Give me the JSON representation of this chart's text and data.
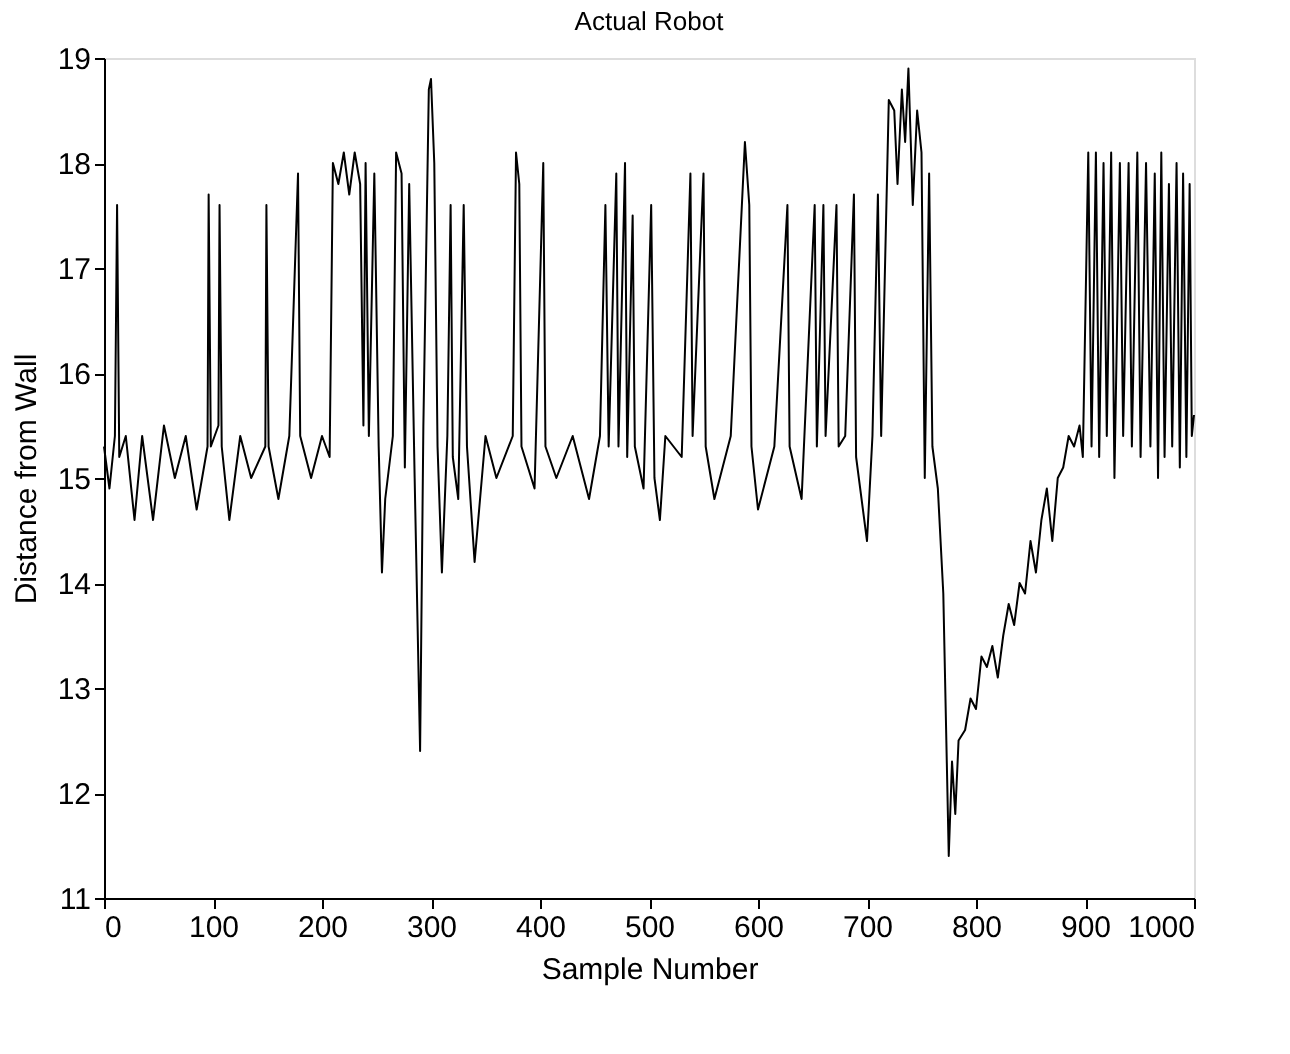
{
  "chart_data": {
    "type": "line",
    "title": "Actual Robot",
    "xlabel": "Sample Number",
    "ylabel": "Distance from Wall",
    "xlim": [
      0,
      1000
    ],
    "xticks": [
      0,
      100,
      200,
      300,
      400,
      500,
      600,
      700,
      800,
      900,
      1000
    ],
    "ylim": [
      11,
      19
    ],
    "yticks": [
      11,
      12,
      13,
      14,
      15,
      16,
      17,
      18,
      19
    ],
    "grid": false,
    "legend": false,
    "marker": "none",
    "line_style": "solid",
    "series": [
      {
        "color": "#000000",
        "x": [
          0,
          5,
          10,
          12,
          14,
          20,
          28,
          35,
          45,
          55,
          65,
          75,
          85,
          95,
          96,
          98,
          105,
          106,
          108,
          115,
          125,
          135,
          148,
          149,
          151,
          160,
          170,
          178,
          180,
          190,
          200,
          207,
          210,
          215,
          220,
          225,
          230,
          235,
          238,
          240,
          243,
          248,
          252,
          255,
          258,
          265,
          268,
          273,
          276,
          280,
          285,
          290,
          293,
          298,
          300,
          303,
          306,
          310,
          315,
          318,
          320,
          325,
          330,
          333,
          340,
          350,
          360,
          375,
          378,
          381,
          383,
          395,
          403,
          405,
          415,
          430,
          445,
          455,
          460,
          463,
          470,
          472,
          478,
          480,
          485,
          487,
          495,
          502,
          505,
          510,
          515,
          530,
          538,
          540,
          550,
          552,
          560,
          575,
          588,
          592,
          594,
          600,
          615,
          627,
          629,
          640,
          652,
          654,
          660,
          662,
          672,
          674,
          680,
          688,
          690,
          700,
          705,
          710,
          713,
          720,
          725,
          728,
          732,
          735,
          738,
          742,
          746,
          750,
          753,
          757,
          760,
          765,
          770,
          775,
          778,
          781,
          784,
          790,
          795,
          800,
          805,
          810,
          815,
          820,
          825,
          830,
          835,
          840,
          845,
          850,
          855,
          860,
          865,
          870,
          875,
          880,
          885,
          890,
          895,
          898,
          903,
          906,
          910,
          913,
          917,
          920,
          924,
          927,
          932,
          935,
          940,
          943,
          948,
          951,
          956,
          960,
          964,
          967,
          970,
          973,
          977,
          980,
          984,
          987,
          990,
          993,
          996,
          998,
          1000
        ],
        "values": [
          15.3,
          14.9,
          15.4,
          17.6,
          15.2,
          15.4,
          14.6,
          15.4,
          14.6,
          15.5,
          15.0,
          15.4,
          14.7,
          15.3,
          17.7,
          15.3,
          15.5,
          17.6,
          15.3,
          14.6,
          15.4,
          15.0,
          15.3,
          17.6,
          15.3,
          14.8,
          15.4,
          17.9,
          15.4,
          15.0,
          15.4,
          15.2,
          18.0,
          17.8,
          18.1,
          17.7,
          18.1,
          17.8,
          15.5,
          18.0,
          15.4,
          17.9,
          15.3,
          14.1,
          14.8,
          15.4,
          18.1,
          17.9,
          15.1,
          17.8,
          15.0,
          12.4,
          15.5,
          18.7,
          18.8,
          18.0,
          15.3,
          14.1,
          15.4,
          17.6,
          15.2,
          14.8,
          17.6,
          15.3,
          14.2,
          15.4,
          15.0,
          15.4,
          18.1,
          17.8,
          15.3,
          14.9,
          18.0,
          15.3,
          15.0,
          15.4,
          14.8,
          15.4,
          17.6,
          15.3,
          17.9,
          15.3,
          18.0,
          15.2,
          17.5,
          15.3,
          14.9,
          17.6,
          15.0,
          14.6,
          15.4,
          15.2,
          17.9,
          15.4,
          17.9,
          15.3,
          14.8,
          15.4,
          18.2,
          17.6,
          15.3,
          14.7,
          15.3,
          17.6,
          15.3,
          14.8,
          17.6,
          15.3,
          17.6,
          15.4,
          17.6,
          15.3,
          15.4,
          17.7,
          15.2,
          14.4,
          15.4,
          17.7,
          15.4,
          18.6,
          18.5,
          17.8,
          18.7,
          18.2,
          18.9,
          17.6,
          18.5,
          18.1,
          15.0,
          17.9,
          15.3,
          14.9,
          13.9,
          11.4,
          12.3,
          11.8,
          12.5,
          12.6,
          12.9,
          12.8,
          13.3,
          13.2,
          13.4,
          13.1,
          13.5,
          13.8,
          13.6,
          14.0,
          13.9,
          14.4,
          14.1,
          14.6,
          14.9,
          14.4,
          15.0,
          15.1,
          15.4,
          15.3,
          15.5,
          15.2,
          18.1,
          15.3,
          18.1,
          15.2,
          18.0,
          15.4,
          18.1,
          15.0,
          18.0,
          15.4,
          18.0,
          15.3,
          18.1,
          15.2,
          18.0,
          15.3,
          17.9,
          15.0,
          18.1,
          15.2,
          17.8,
          15.3,
          18.0,
          15.1,
          17.9,
          15.2,
          17.8,
          15.4,
          15.6
        ]
      }
    ]
  }
}
